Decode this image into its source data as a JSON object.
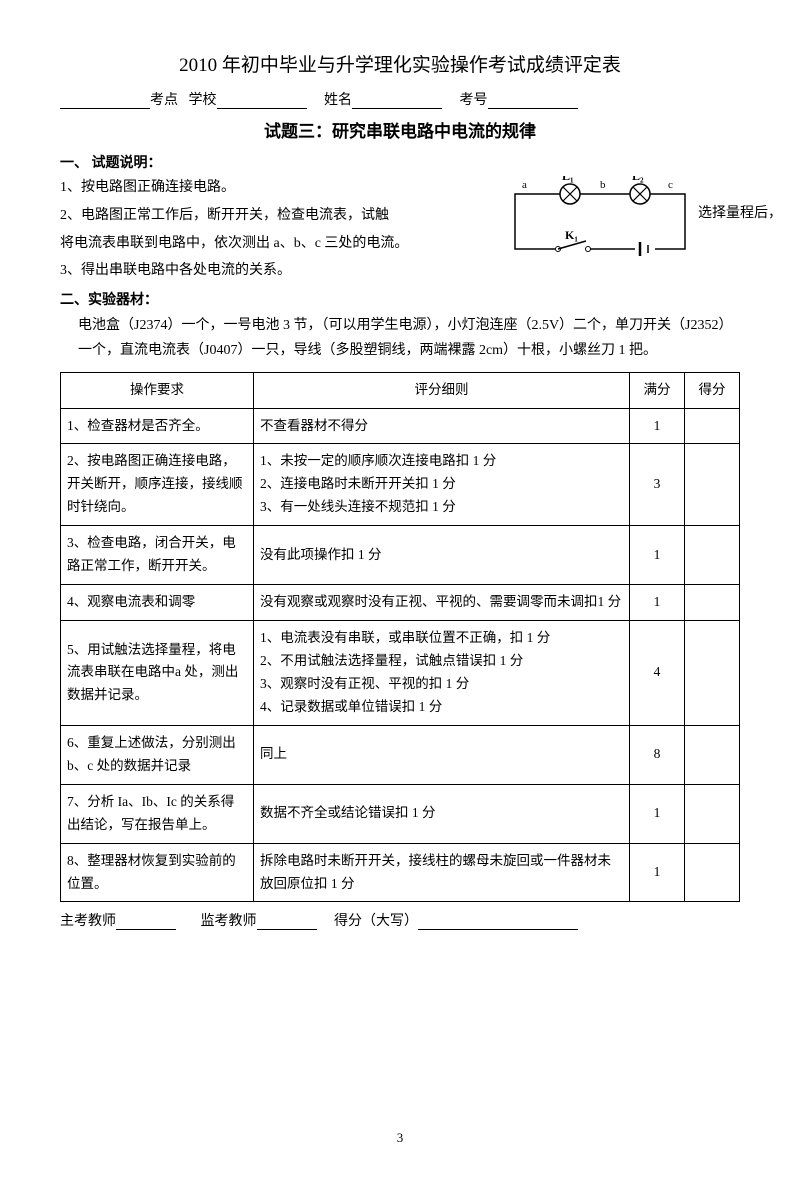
{
  "title": "2010 年初中毕业与升学理化实验操作考试成绩评定表",
  "header": {
    "site_label": "考点",
    "school_label": "学校",
    "name_label": "姓名",
    "id_label": "考号"
  },
  "subtitle": "试题三：研究串联电路中电流的规律",
  "section1": {
    "head": "一、 试题说明：",
    "p1": "1、按电路图正确连接电路。",
    "p2a": "2、电路图正常工作后，断开开关，检查电流表，试触",
    "p2b": "选择量程后，",
    "p2c": "将电流表串联到电路中，依次测出 a、b、c 三处的电流。",
    "p3": "3、得出串联电路中各处电流的关系。"
  },
  "section2": {
    "head": "二、实验器材：",
    "text": "电池盒（J2374）一个，一号电池 3 节，（可以用学生电源），小灯泡连座（2.5V）二个，单刀开关（J2352）一个，直流电流表（J0407）一只，导线（多股塑铜线，两端裸露 2cm）十根，小螺丝刀 1 把。"
  },
  "circuit": {
    "labels": {
      "a": "a",
      "b": "b",
      "c": "c",
      "L1": "L₁",
      "L2": "L₂",
      "K1": "K₁"
    }
  },
  "table": {
    "headers": {
      "req": "操作要求",
      "detail": "评分细则",
      "max": "满分",
      "got": "得分"
    },
    "rows": [
      {
        "req": "1、检查器材是否齐全。",
        "detail": "不查看器材不得分",
        "max": "1"
      },
      {
        "req": "2、按电路图正确连接电路，开关断开，顺序连接，接线顺时针绕向。",
        "detail": "1、未按一定的顺序顺次连接电路扣 1 分\n2、连接电路时未断开开关扣 1 分\n3、有一处线头连接不规范扣 1 分",
        "max": "3"
      },
      {
        "req": "3、检查电路，闭合开关，电路正常工作，断开开关。",
        "detail": "没有此项操作扣 1 分",
        "max": "1"
      },
      {
        "req": "4、观察电流表和调零",
        "detail": "没有观察或观察时没有正视、平视的、需要调零而未调扣1 分",
        "max": "1"
      },
      {
        "req": "5、用试触法选择量程，将电流表串联在电路中a 处，测出数据并记录。",
        "detail": "1、电流表没有串联，或串联位置不正确，扣 1 分\n2、不用试触法选择量程，试触点错误扣 1 分\n3、观察时没有正视、平视的扣 1 分\n4、记录数据或单位错误扣 1 分",
        "max": "4"
      },
      {
        "req": "6、重复上述做法，分别测出b、c 处的数据并记录",
        "detail": "同上",
        "max": "8"
      },
      {
        "req": "7、分析 Ia、Ib、Ic 的关系得出结论，写在报告单上。",
        "detail": "数据不齐全或结论错误扣 1 分",
        "max": "1"
      },
      {
        "req": "8、整理器材恢复到实验前的位置。",
        "detail": "拆除电路时未断开开关，接线柱的螺母未旋回或一件器材未放回原位扣 1 分",
        "max": "1"
      }
    ]
  },
  "footer": {
    "t1": "主考教师",
    "t2": "监考教师",
    "t3": "得分（大写）"
  },
  "page_no": "3"
}
